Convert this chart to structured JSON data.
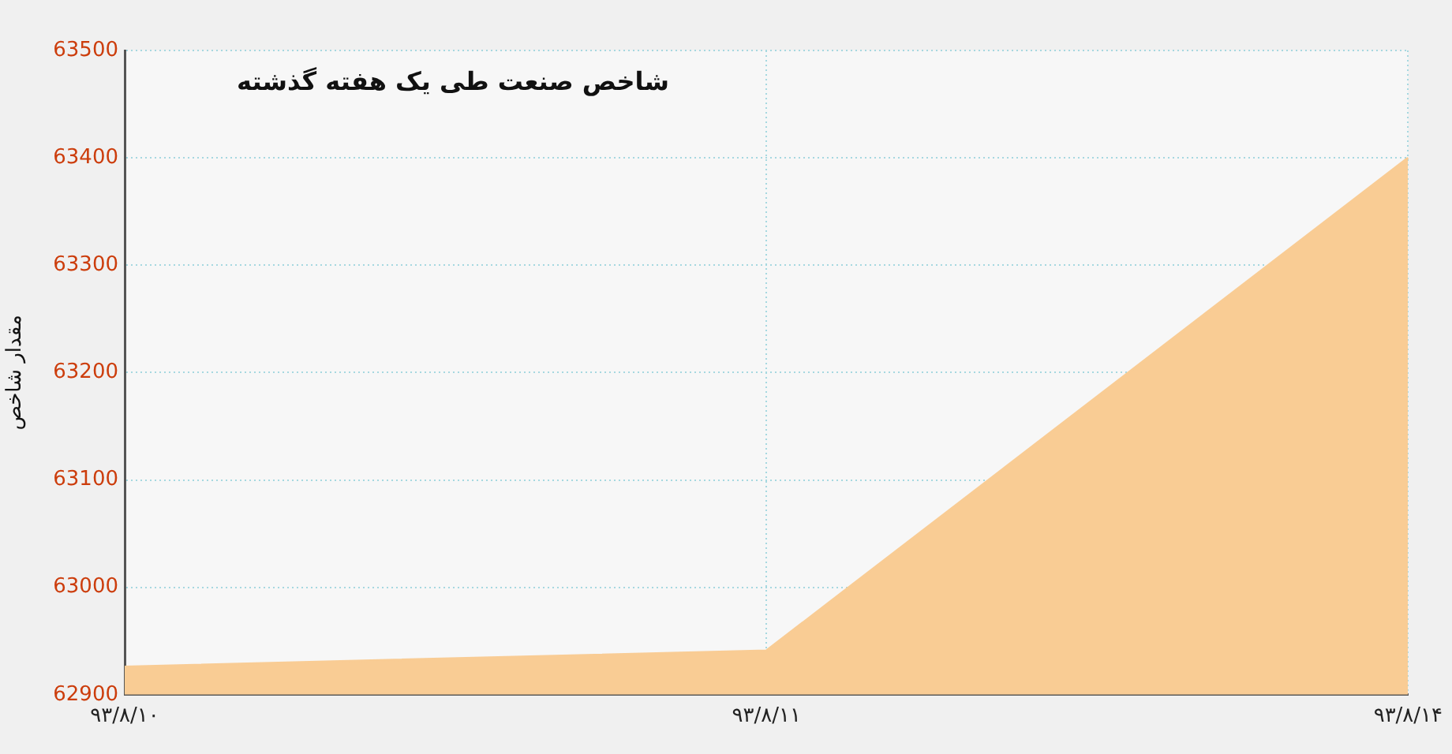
{
  "chart_data": {
    "type": "area",
    "title": "شاخص صنعت طی یک هفته گذشته",
    "ylabel": "مقدار شاخص",
    "categories": [
      "۹۳/۸/۱۰",
      "۹۳/۸/۱۱",
      "۹۳/۸/۱۴"
    ],
    "series": [
      {
        "color": "#f9cc94",
        "values": [
          62926,
          62941,
          63400
        ]
      }
    ],
    "ylim": [
      62900,
      63500
    ],
    "yticks": [
      62900,
      63000,
      63100,
      63200,
      63300,
      63400,
      63500
    ],
    "grid": true,
    "legend": false,
    "marker": "none"
  }
}
